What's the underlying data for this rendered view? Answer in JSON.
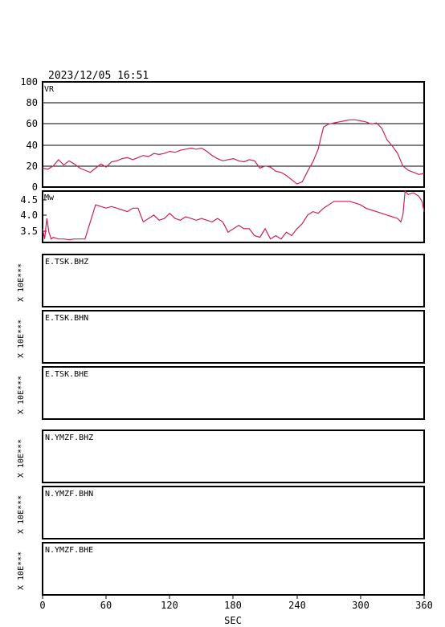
{
  "timestamp": "2023/12/05 16:51",
  "x_axis": {
    "label": "SEC",
    "ticks": [
      "0",
      "60",
      "120",
      "180",
      "240",
      "300",
      "360"
    ]
  },
  "vr_panel": {
    "label": "VR",
    "ticks": [
      "100",
      "80",
      "60",
      "40",
      "20",
      "0"
    ]
  },
  "mw_panel": {
    "label": "Mw",
    "ticks": [
      "4.5",
      "4.0",
      "3.5"
    ]
  },
  "trace_panels": [
    {
      "station": "E.TSK.BHZ",
      "unit": "X 10E***"
    },
    {
      "station": "E.TSK.BHN",
      "unit": "X 10E***"
    },
    {
      "station": "E.TSK.BHE",
      "unit": "X 10E***"
    },
    {
      "station": "N.YMZF.BHZ",
      "unit": "X 10E***"
    },
    {
      "station": "N.YMZF.BHN",
      "unit": "X 10E***"
    },
    {
      "station": "N.YMZF.BHE",
      "unit": "X 10E***"
    }
  ],
  "colors": {
    "curve": "#cc2255",
    "frame": "#000000"
  },
  "chart_data": [
    {
      "type": "line",
      "ylabel": "VR",
      "xlim": [
        0,
        360
      ],
      "ylim": [
        0,
        100
      ],
      "grid": true,
      "x": [
        0,
        5,
        10,
        15,
        20,
        25,
        30,
        35,
        40,
        45,
        50,
        55,
        60,
        65,
        70,
        75,
        80,
        85,
        90,
        95,
        100,
        105,
        110,
        115,
        120,
        125,
        130,
        135,
        140,
        145,
        150,
        155,
        160,
        165,
        170,
        175,
        180,
        185,
        190,
        195,
        200,
        205,
        210,
        215,
        220,
        225,
        230,
        235,
        240,
        245,
        250,
        255,
        260,
        265,
        270,
        275,
        280,
        285,
        290,
        295,
        300,
        305,
        310,
        315,
        320,
        325,
        330,
        335,
        340,
        345,
        350,
        355,
        360
      ],
      "y": [
        18,
        17,
        20,
        26,
        21,
        25,
        22,
        18,
        16,
        14,
        18,
        22,
        19,
        24,
        25,
        27,
        28,
        26,
        28,
        30,
        29,
        32,
        31,
        32,
        34,
        33,
        35,
        36,
        37,
        36,
        37,
        34,
        30,
        27,
        25,
        26,
        27,
        25,
        24,
        26,
        25,
        18,
        20,
        19,
        15,
        14,
        11,
        7,
        3,
        5,
        15,
        24,
        36,
        57,
        60,
        61,
        62,
        63,
        64,
        64,
        63,
        62,
        60,
        61,
        56,
        45,
        39,
        32,
        20,
        16,
        14,
        12,
        13
      ]
    },
    {
      "type": "line",
      "ylabel": "Mw",
      "xlim": [
        0,
        360
      ],
      "ylim": [
        3.2,
        4.7
      ],
      "grid": false,
      "x": [
        0,
        2,
        4,
        6,
        8,
        10,
        15,
        20,
        25,
        30,
        35,
        40,
        45,
        50,
        55,
        60,
        65,
        70,
        75,
        80,
        85,
        90,
        95,
        100,
        105,
        110,
        115,
        120,
        125,
        130,
        135,
        140,
        145,
        150,
        155,
        160,
        165,
        170,
        175,
        180,
        185,
        190,
        195,
        200,
        205,
        210,
        215,
        220,
        225,
        230,
        235,
        240,
        245,
        250,
        255,
        260,
        265,
        270,
        275,
        280,
        285,
        290,
        295,
        300,
        305,
        310,
        315,
        320,
        325,
        330,
        335,
        338,
        340,
        342,
        345,
        350,
        355,
        358,
        360
      ],
      "y": [
        3.6,
        3.3,
        3.9,
        3.5,
        3.3,
        3.35,
        3.3,
        3.3,
        3.28,
        3.3,
        3.3,
        3.3,
        3.8,
        4.3,
        4.25,
        4.2,
        4.25,
        4.2,
        4.15,
        4.1,
        4.2,
        4.2,
        3.8,
        3.9,
        4.0,
        3.85,
        3.9,
        4.05,
        3.9,
        3.85,
        3.95,
        3.9,
        3.85,
        3.9,
        3.85,
        3.8,
        3.9,
        3.8,
        3.5,
        3.6,
        3.7,
        3.6,
        3.6,
        3.4,
        3.35,
        3.6,
        3.3,
        3.4,
        3.3,
        3.5,
        3.4,
        3.6,
        3.75,
        4.0,
        4.1,
        4.05,
        4.2,
        4.3,
        4.4,
        4.4,
        4.4,
        4.4,
        4.35,
        4.3,
        4.2,
        4.15,
        4.1,
        4.05,
        4.0,
        3.95,
        3.9,
        3.8,
        4.0,
        4.7,
        4.6,
        4.65,
        4.55,
        4.4,
        4.1
      ]
    }
  ]
}
